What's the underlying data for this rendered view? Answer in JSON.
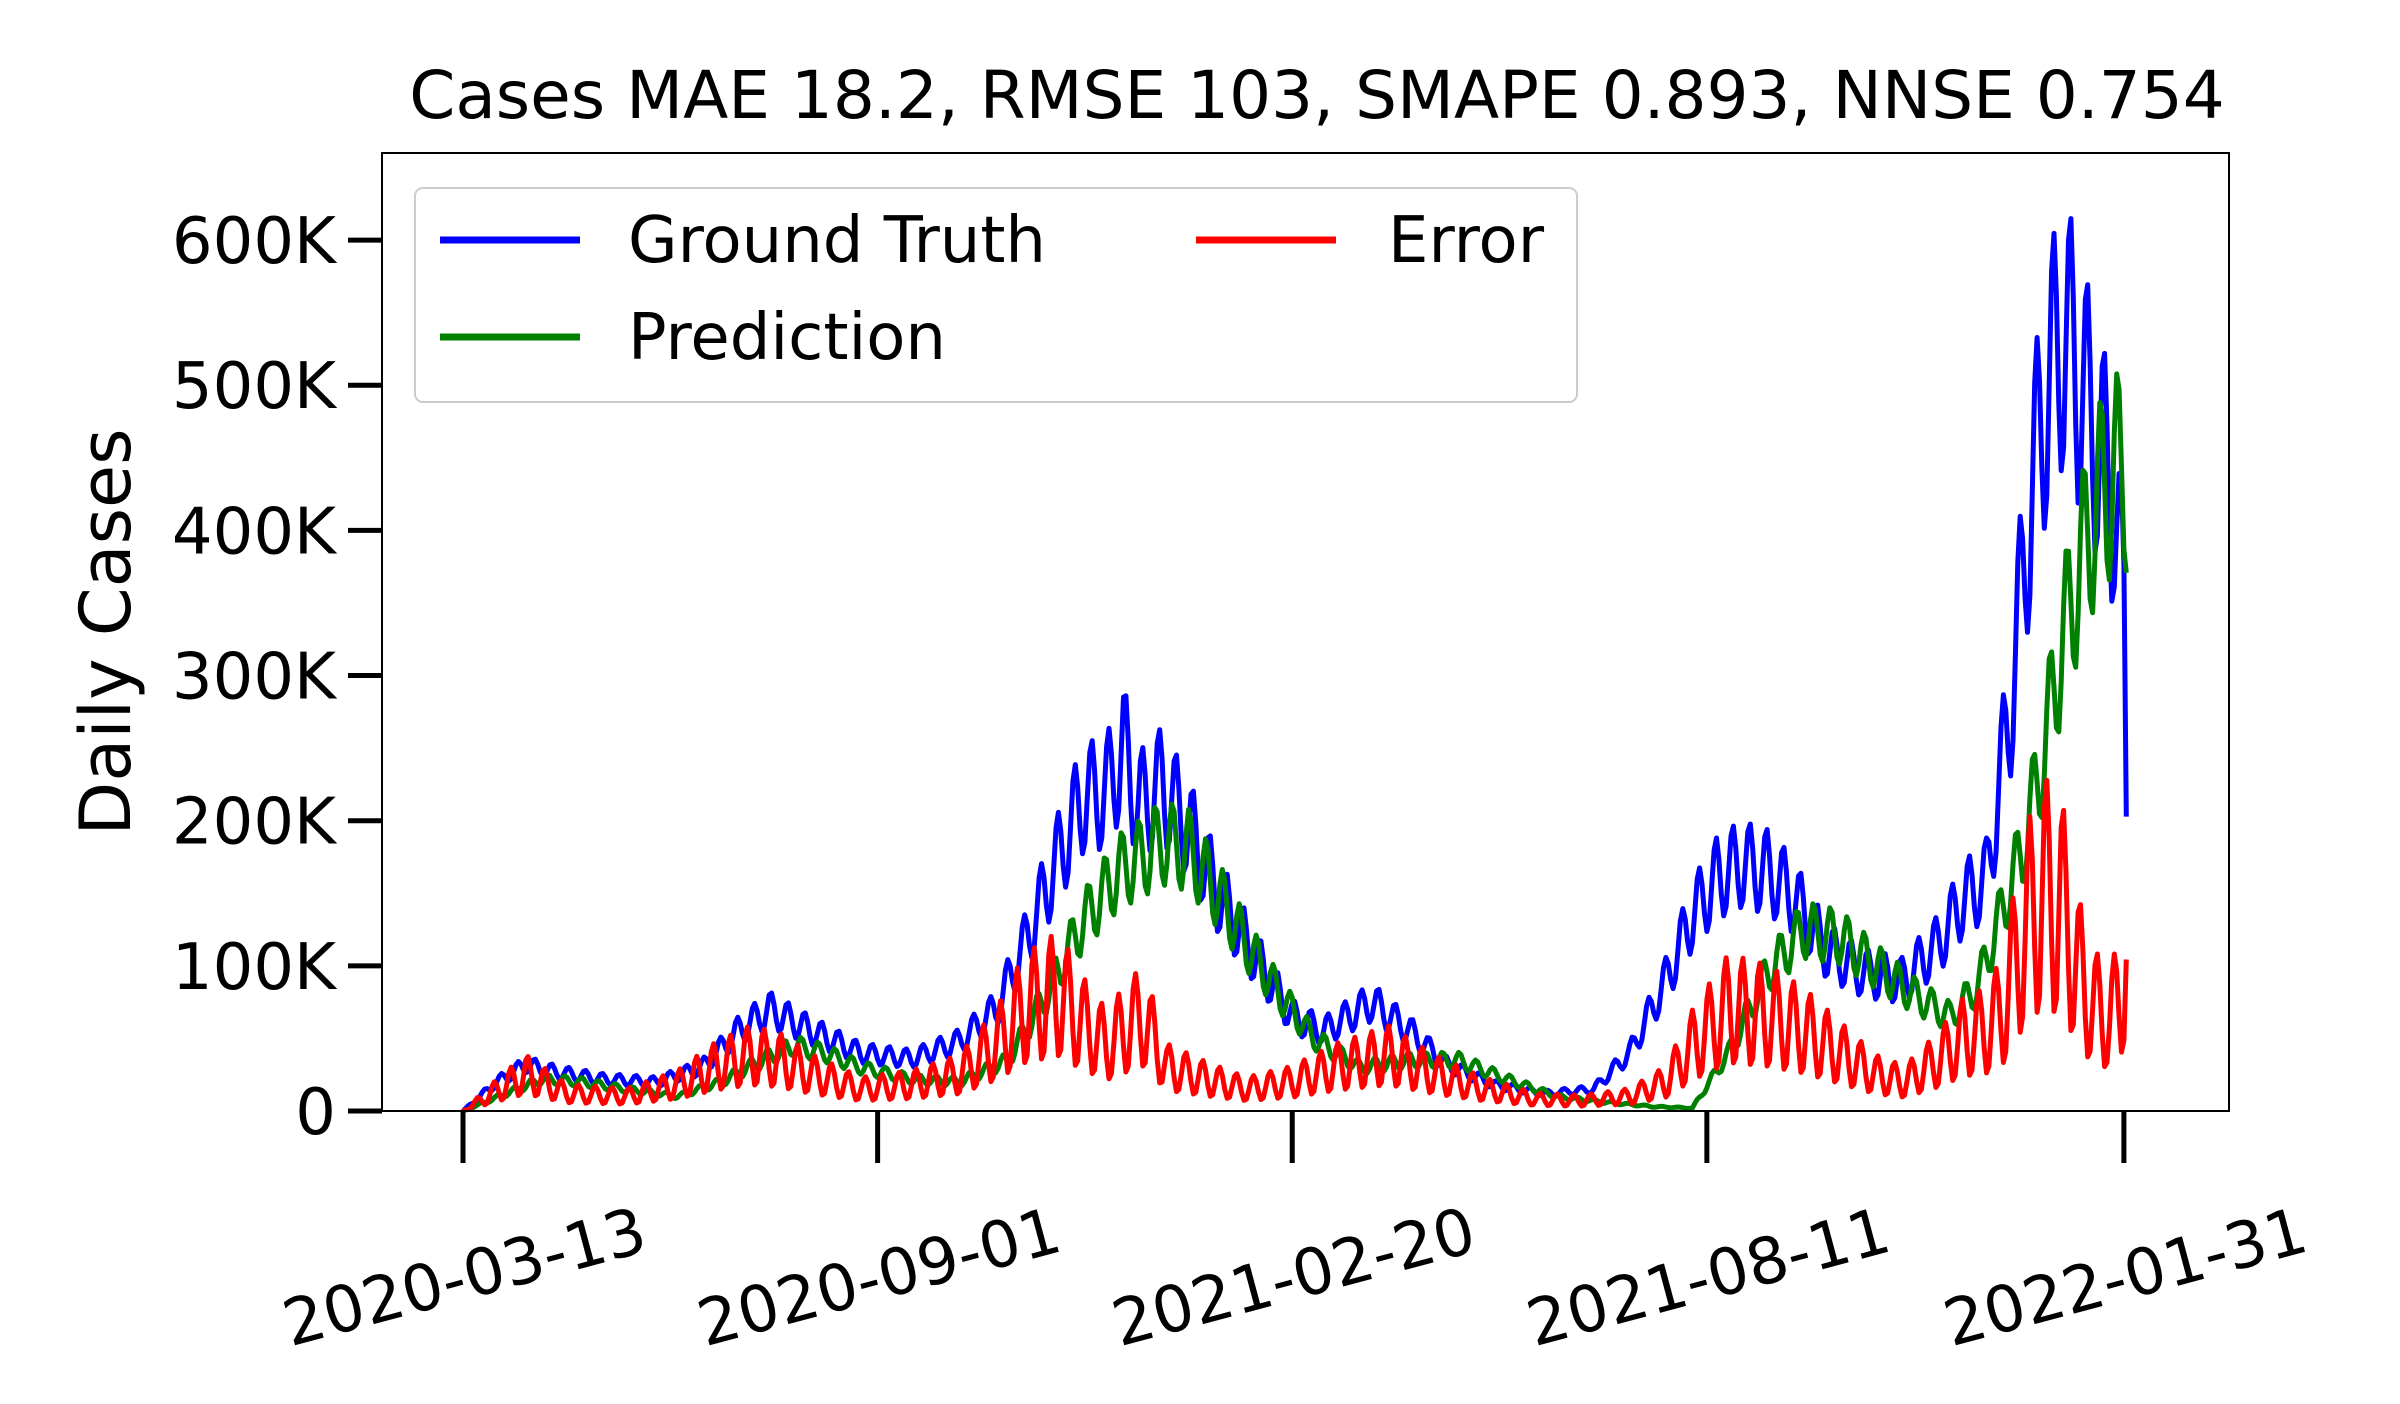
{
  "chart_data": {
    "type": "line",
    "title": "Cases MAE 18.2, RMSE 103, SMAPE 0.893, NNSE 0.754",
    "ylabel": "Daily Cases",
    "xlabel": "",
    "x_range": [
      "2020-03-13",
      "2022-02-10"
    ],
    "ylim": [
      0,
      660000
    ],
    "x_ticks": [
      "2020-03-13",
      "2020-09-01",
      "2021-02-20",
      "2021-08-11",
      "2022-01-31"
    ],
    "y_ticks": [
      {
        "value": 0,
        "label": "0"
      },
      {
        "value": 100000,
        "label": "100K"
      },
      {
        "value": 200000,
        "label": "200K"
      },
      {
        "value": 300000,
        "label": "300K"
      },
      {
        "value": 400000,
        "label": "400K"
      },
      {
        "value": 500000,
        "label": "500K"
      },
      {
        "value": 600000,
        "label": "600K"
      }
    ],
    "legend": {
      "position": "top-left",
      "columns": 2
    },
    "grid": false,
    "series": [
      {
        "name": "Ground Truth",
        "color": "#0000ff",
        "weekly_amplitude": 0.18,
        "x": [
          "2020-03-13",
          "2020-03-27",
          "2020-04-08",
          "2020-04-20",
          "2020-05-10",
          "2020-06-01",
          "2020-06-20",
          "2020-07-05",
          "2020-07-18",
          "2020-08-05",
          "2020-08-25",
          "2020-09-15",
          "2020-10-05",
          "2020-10-20",
          "2020-11-01",
          "2020-11-15",
          "2020-11-25",
          "2020-12-05",
          "2020-12-12",
          "2020-12-18",
          "2020-12-28",
          "2021-01-08",
          "2021-01-20",
          "2021-02-05",
          "2021-02-20",
          "2021-03-05",
          "2021-03-25",
          "2021-04-10",
          "2021-04-25",
          "2021-05-15",
          "2021-06-05",
          "2021-06-25",
          "2021-07-10",
          "2021-07-25",
          "2021-08-05",
          "2021-08-15",
          "2021-08-25",
          "2021-09-05",
          "2021-09-15",
          "2021-09-30",
          "2021-10-15",
          "2021-10-31",
          "2021-11-15",
          "2021-11-25",
          "2021-12-05",
          "2021-12-15",
          "2021-12-22",
          "2021-12-28",
          "2022-01-05",
          "2022-01-10",
          "2022-01-15",
          "2022-01-22",
          "2022-01-27",
          "2022-01-31",
          "2022-02-01"
        ],
        "y": [
          0,
          20000,
          32000,
          27000,
          22000,
          20000,
          30000,
          55000,
          70000,
          55000,
          40000,
          36000,
          48000,
          70000,
          115000,
          175000,
          215000,
          220000,
          250000,
          210000,
          225000,
          195000,
          150000,
          105000,
          65000,
          55000,
          75000,
          55000,
          32000,
          18000,
          12000,
          15000,
          40000,
          90000,
          135000,
          160000,
          170000,
          165000,
          150000,
          110000,
          95000,
          90000,
          115000,
          145000,
          160000,
          280000,
          400000,
          480000,
          535000,
          520000,
          490000,
          450000,
          420000,
          350000,
          220000
        ]
      },
      {
        "name": "Prediction",
        "color": "#008000",
        "weekly_amplitude": 0.16,
        "x": [
          "2020-03-13",
          "2020-03-25",
          "2020-04-15",
          "2020-05-01",
          "2020-05-20",
          "2020-06-10",
          "2020-06-28",
          "2020-07-15",
          "2020-07-28",
          "2020-08-10",
          "2020-08-25",
          "2020-09-15",
          "2020-10-05",
          "2020-10-25",
          "2020-11-10",
          "2020-11-25",
          "2020-12-10",
          "2020-12-20",
          "2020-12-28",
          "2021-01-08",
          "2021-01-20",
          "2021-02-01",
          "2021-02-15",
          "2021-03-01",
          "2021-03-20",
          "2021-04-10",
          "2021-04-30",
          "2021-05-20",
          "2021-06-10",
          "2021-06-30",
          "2021-07-20",
          "2021-08-05",
          "2021-08-20",
          "2021-09-05",
          "2021-09-20",
          "2021-10-05",
          "2021-10-20",
          "2021-11-05",
          "2021-11-20",
          "2021-12-01",
          "2021-12-10",
          "2021-12-20",
          "2021-12-28",
          "2022-01-05",
          "2022-01-12",
          "2022-01-20",
          "2022-01-27",
          "2022-02-01"
        ],
        "y": [
          0,
          8000,
          22000,
          20000,
          15000,
          10000,
          20000,
          35000,
          45000,
          40000,
          30000,
          22000,
          20000,
          35000,
          80000,
          130000,
          165000,
          175000,
          185000,
          180000,
          150000,
          115000,
          80000,
          50000,
          30000,
          35000,
          35000,
          22000,
          10000,
          6000,
          3000,
          2000,
          40000,
          95000,
          125000,
          120000,
          100000,
          80000,
          65000,
          85000,
          130000,
          180000,
          240000,
          320000,
          370000,
          420000,
          440000,
          440000
        ]
      },
      {
        "name": "Error",
        "color": "#ff0000",
        "weekly_amplitude": 0.55,
        "x": [
          "2020-03-13",
          "2020-03-28",
          "2020-04-08",
          "2020-04-25",
          "2020-05-20",
          "2020-06-10",
          "2020-06-25",
          "2020-07-10",
          "2020-07-22",
          "2020-08-05",
          "2020-08-25",
          "2020-09-15",
          "2020-10-05",
          "2020-10-20",
          "2020-11-01",
          "2020-11-15",
          "2020-11-25",
          "2020-12-05",
          "2020-12-12",
          "2020-12-20",
          "2020-12-30",
          "2021-01-15",
          "2021-02-01",
          "2021-02-20",
          "2021-03-10",
          "2021-04-01",
          "2021-04-20",
          "2021-05-10",
          "2021-06-01",
          "2021-06-20",
          "2021-07-10",
          "2021-07-25",
          "2021-08-05",
          "2021-08-20",
          "2021-09-05",
          "2021-09-20",
          "2021-10-05",
          "2021-10-20",
          "2021-11-01",
          "2021-11-15",
          "2021-11-25",
          "2021-12-05",
          "2021-12-12",
          "2021-12-20",
          "2021-12-28",
          "2022-01-05",
          "2022-01-15",
          "2022-01-25",
          "2022-01-31",
          "2022-02-01"
        ],
        "y": [
          0,
          15000,
          25000,
          12000,
          10000,
          18000,
          30000,
          38000,
          35000,
          25000,
          15000,
          18000,
          25000,
          45000,
          70000,
          80000,
          60000,
          45000,
          55000,
          65000,
          30000,
          22000,
          15000,
          20000,
          30000,
          38000,
          25000,
          15000,
          8000,
          7000,
          10000,
          20000,
          45000,
          70000,
          65000,
          55000,
          40000,
          25000,
          20000,
          35000,
          50000,
          55000,
          70000,
          120000,
          150000,
          140000,
          80000,
          60000,
          90000,
          110000
        ]
      }
    ]
  }
}
